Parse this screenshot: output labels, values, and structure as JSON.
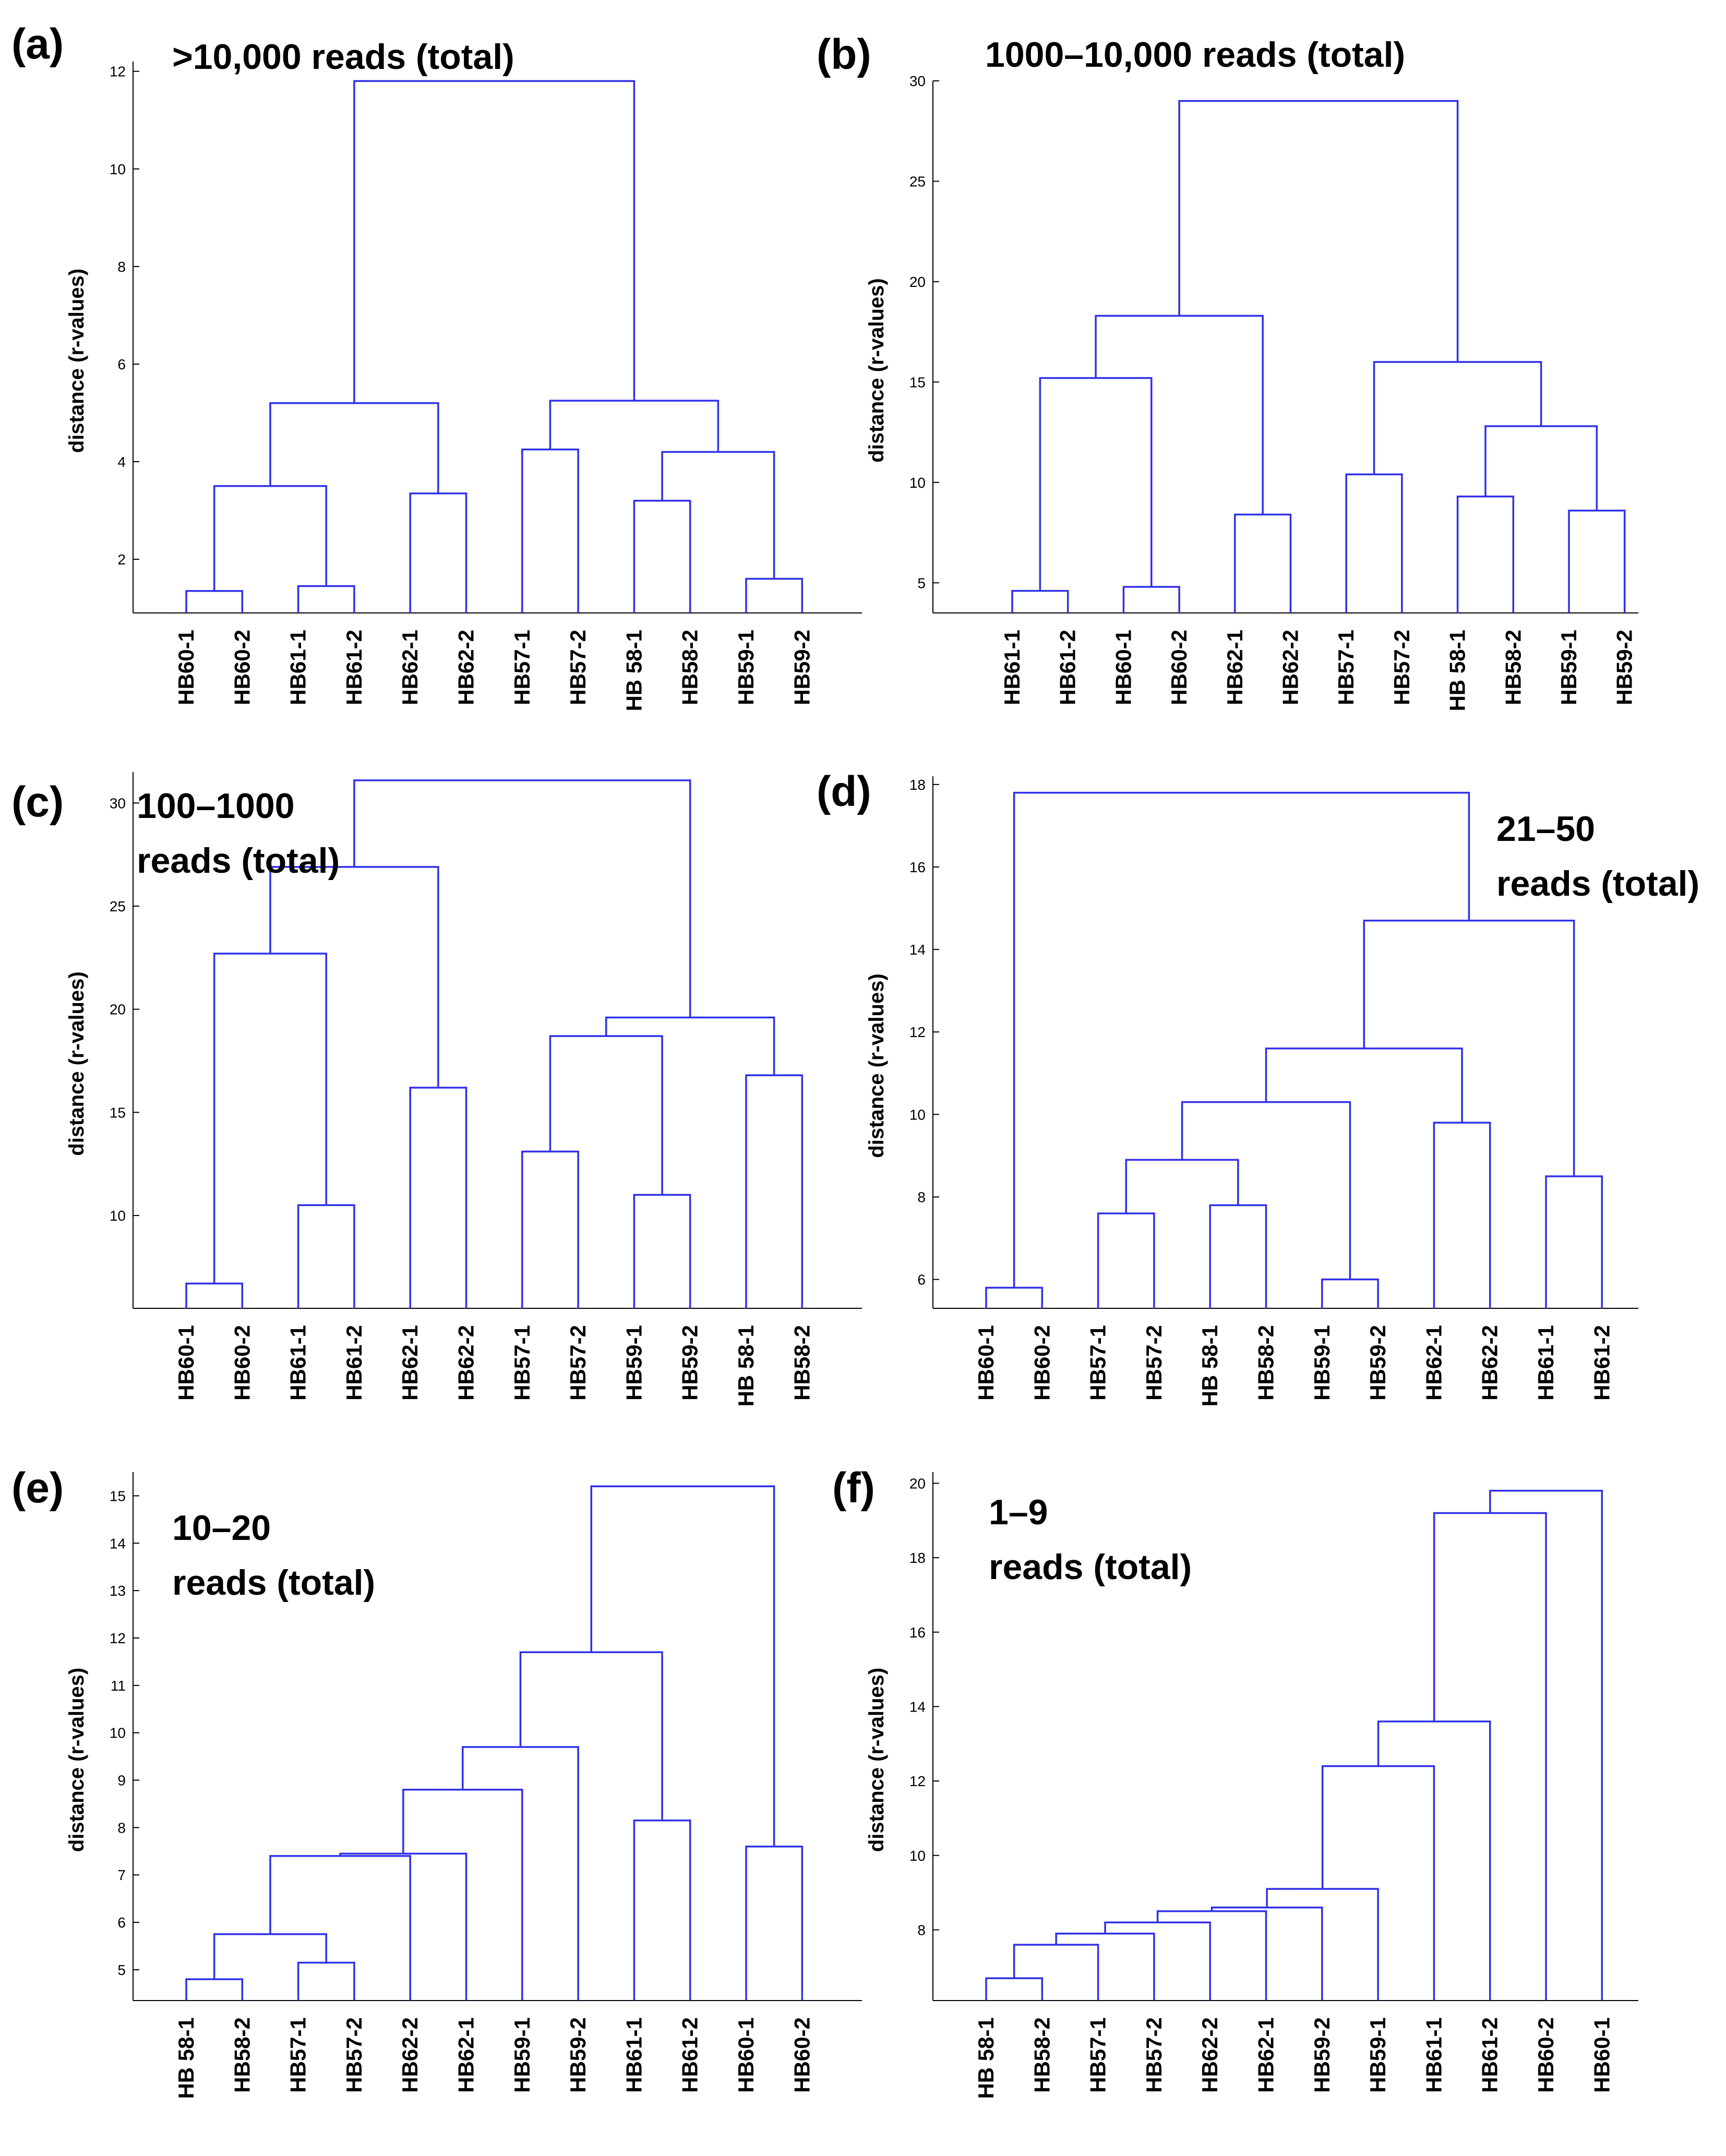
{
  "chart_data": [
    {
      "type": "dendrogram",
      "panel_label": "(a)",
      "title": [
        ">10,000 reads (total)"
      ],
      "ylabel": "distance (r-values)",
      "ylim": [
        0.9,
        12.2
      ],
      "yticks": [
        2,
        4,
        6,
        8,
        10,
        12
      ],
      "ytick_labels": [
        "2",
        "4",
        "6",
        "8",
        "10",
        "12"
      ],
      "leaves": [
        "HB60-1",
        "HB60-2",
        "HB61-1",
        "HB61-2",
        "HB62-1",
        "HB62-2",
        "HB57-1",
        "HB57-2",
        "HB 58-1",
        "HB58-2",
        "HB59-1",
        "HB59-2"
      ],
      "merges": [
        [
          0,
          1,
          1.35
        ],
        [
          2,
          3,
          1.45
        ],
        [
          10,
          11,
          1.6
        ],
        [
          8,
          9,
          3.2
        ],
        [
          12,
          13,
          3.5
        ],
        [
          4,
          5,
          3.35
        ],
        [
          6,
          7,
          4.25
        ],
        [
          15,
          14,
          4.2
        ],
        [
          16,
          17,
          5.2
        ],
        [
          18,
          19,
          5.25
        ],
        [
          20,
          21,
          11.8
        ]
      ]
    },
    {
      "type": "dendrogram",
      "panel_label": "(b)",
      "title": [
        "1000–10,000 reads (total)"
      ],
      "ylabel": "distance (r-values)",
      "ylim": [
        3.5,
        30
      ],
      "yticks": [
        5,
        10,
        15,
        20,
        25,
        30
      ],
      "ytick_labels": [
        "5",
        "10",
        "15",
        "20",
        "25",
        "30"
      ],
      "leaves": [
        "HB61-1",
        "HB61-2",
        "HB60-1",
        "HB60-2",
        "HB62-1",
        "HB62-2",
        "HB57-1",
        "HB57-2",
        "HB 58-1",
        "HB58-2",
        "HB59-1",
        "HB59-2"
      ],
      "merges": [
        [
          0,
          1,
          4.6
        ],
        [
          2,
          3,
          4.8
        ],
        [
          4,
          5,
          8.4
        ],
        [
          6,
          7,
          10.4
        ],
        [
          8,
          9,
          9.3
        ],
        [
          10,
          11,
          8.6
        ],
        [
          12,
          13,
          15.2
        ],
        [
          16,
          17,
          12.8
        ],
        [
          14,
          18,
          18.3
        ],
        [
          15,
          19,
          16.0
        ],
        [
          20,
          21,
          29.0
        ]
      ]
    },
    {
      "type": "dendrogram",
      "panel_label": "(c)",
      "title": [
        "100–1000",
        "reads (total)"
      ],
      "ylabel": "distance (r-values)",
      "ylim": [
        5.5,
        31.5
      ],
      "yticks": [
        10,
        15,
        20,
        25,
        30
      ],
      "ytick_labels": [
        "10",
        "15",
        "20",
        "25",
        "30"
      ],
      "leaves": [
        "HB60-1",
        "HB60-2",
        "HB61-1",
        "HB61-2",
        "HB62-1",
        "HB62-2",
        "HB57-1",
        "HB57-2",
        "HB59-1",
        "HB59-2",
        "HB 58-1",
        "HB58-2"
      ],
      "merges": [
        [
          0,
          1,
          6.7
        ],
        [
          2,
          3,
          10.5
        ],
        [
          4,
          5,
          16.2
        ],
        [
          6,
          7,
          13.1
        ],
        [
          8,
          9,
          11.0
        ],
        [
          10,
          11,
          16.8
        ],
        [
          12,
          13,
          22.7
        ],
        [
          15,
          16,
          18.7
        ],
        [
          14,
          18,
          26.9
        ],
        [
          19,
          17,
          19.6
        ],
        [
          20,
          21,
          31.1
        ]
      ]
    },
    {
      "type": "dendrogram",
      "panel_label": "(d)",
      "title": [
        "21–50",
        "reads (total)"
      ],
      "ylabel": "distance (r-values)",
      "ylim": [
        5.3,
        18.2
      ],
      "yticks": [
        6,
        8,
        10,
        12,
        14,
        16,
        18
      ],
      "ytick_labels": [
        "6",
        "8",
        "10",
        "12",
        "14",
        "16",
        "18"
      ],
      "leaves": [
        "HB60-1",
        "HB60-2",
        "HB57-1",
        "HB57-2",
        "HB 58-1",
        "HB58-2",
        "HB59-1",
        "HB59-2",
        "HB62-1",
        "HB62-2",
        "HB61-1",
        "HB61-2"
      ],
      "merges": [
        [
          0,
          1,
          5.8
        ],
        [
          2,
          3,
          7.6
        ],
        [
          4,
          5,
          7.8
        ],
        [
          6,
          7,
          6.0
        ],
        [
          8,
          9,
          9.8
        ],
        [
          10,
          11,
          8.5
        ],
        [
          13,
          14,
          8.9
        ],
        [
          18,
          15,
          10.3
        ],
        [
          19,
          16,
          11.6
        ],
        [
          20,
          17,
          14.7
        ],
        [
          12,
          21,
          17.8
        ]
      ]
    },
    {
      "type": "dendrogram",
      "panel_label": "(e)",
      "title": [
        "10–20",
        "reads (total)"
      ],
      "ylabel": "distance (r-values)",
      "ylim": [
        4.35,
        15.5
      ],
      "yticks": [
        5,
        6,
        7,
        8,
        9,
        10,
        11,
        12,
        13,
        14,
        15
      ],
      "ytick_labels": [
        "5",
        "6",
        "7",
        "8",
        "9",
        "10",
        "11",
        "12",
        "13",
        "14",
        "15"
      ],
      "leaves": [
        "HB 58-1",
        "HB58-2",
        "HB57-1",
        "HB57-2",
        "HB62-2",
        "HB62-1",
        "HB59-1",
        "HB59-2",
        "HB61-1",
        "HB61-2",
        "HB60-1",
        "HB60-2"
      ],
      "merges": [
        [
          0,
          1,
          4.8
        ],
        [
          2,
          3,
          5.15
        ],
        [
          12,
          13,
          5.75
        ],
        [
          14,
          4,
          7.4
        ],
        [
          15,
          5,
          7.45
        ],
        [
          16,
          6,
          8.8
        ],
        [
          17,
          7,
          9.7
        ],
        [
          8,
          9,
          8.15
        ],
        [
          18,
          19,
          11.7
        ],
        [
          10,
          11,
          7.6
        ],
        [
          20,
          21,
          15.2
        ]
      ]
    },
    {
      "type": "dendrogram",
      "panel_label": "(f)",
      "title": [
        "1–9",
        "reads (total)"
      ],
      "ylabel": "distance (r-values)",
      "ylim": [
        6.1,
        20.3
      ],
      "yticks": [
        8,
        10,
        12,
        14,
        16,
        18,
        20
      ],
      "ytick_labels": [
        "8",
        "10",
        "12",
        "14",
        "16",
        "18",
        "20"
      ],
      "leaves": [
        "HB 58-1",
        "HB58-2",
        "HB57-1",
        "HB57-2",
        "HB62-2",
        "HB62-1",
        "HB59-2",
        "HB59-1",
        "HB61-1",
        "HB61-2",
        "HB60-2",
        "HB60-1"
      ],
      "merges": [
        [
          0,
          1,
          6.7
        ],
        [
          12,
          2,
          7.6
        ],
        [
          13,
          3,
          7.9
        ],
        [
          14,
          4,
          8.2
        ],
        [
          15,
          5,
          8.5
        ],
        [
          16,
          6,
          8.6
        ],
        [
          17,
          7,
          9.1
        ],
        [
          8,
          18,
          12.4
        ],
        [
          19,
          9,
          13.6
        ],
        [
          20,
          10,
          19.2
        ],
        [
          21,
          11,
          19.8
        ]
      ]
    }
  ]
}
